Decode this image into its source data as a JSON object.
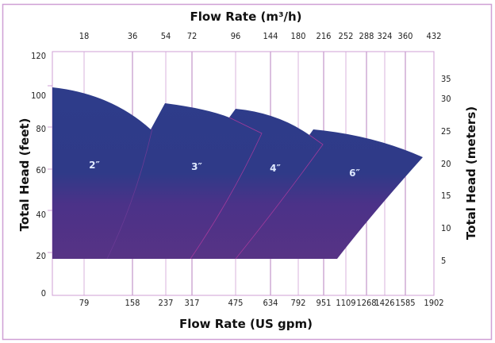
{
  "chart_data": {
    "type": "area",
    "title_top": "Flow Rate (m³/h)",
    "xlabel": "Flow Rate (US gpm)",
    "ylabel_left": "Total Head (feet)",
    "ylabel_right": "Total Head (meters)",
    "x_ticks_top": [
      "18",
      "36",
      "54",
      "72",
      "96",
      "144",
      "180",
      "216",
      "252",
      "288",
      "324",
      "360",
      "432"
    ],
    "x_ticks_bottom": [
      "79",
      "158",
      "237",
      "317",
      "475",
      "634",
      "792",
      "951",
      "1109",
      "1268",
      "1426",
      "1585",
      "1902"
    ],
    "y_ticks_left": [
      "0",
      "20",
      "40",
      "60",
      "80",
      "100",
      "120"
    ],
    "y_ticks_right": [
      "5",
      "10",
      "15",
      "20",
      "25",
      "30",
      "35"
    ],
    "ylim_feet": [
      0,
      120
    ],
    "grid": "vertical",
    "series": [
      {
        "name": "2\"",
        "label": "2″",
        "head_max_ft": 100,
        "head_min_ft": 17,
        "flow_gpm_range": [
          0,
          200
        ]
      },
      {
        "name": "3\"",
        "label": "3″",
        "head_max_ft": 92,
        "head_min_ft": 17,
        "flow_gpm_range": [
          130,
          450
        ]
      },
      {
        "name": "4\"",
        "label": "4″",
        "head_max_ft": 90,
        "head_min_ft": 17,
        "flow_gpm_range": [
          317,
          900
        ]
      },
      {
        "name": "6\"",
        "label": "6″",
        "head_max_ft": 79,
        "head_min_ft": 17,
        "flow_gpm_range": [
          475,
          1800
        ]
      }
    ],
    "colors": {
      "top": "#2e3c8a",
      "bottom": "#573385",
      "grid": "#d6aedb",
      "divider": "#9b3a9b"
    }
  }
}
